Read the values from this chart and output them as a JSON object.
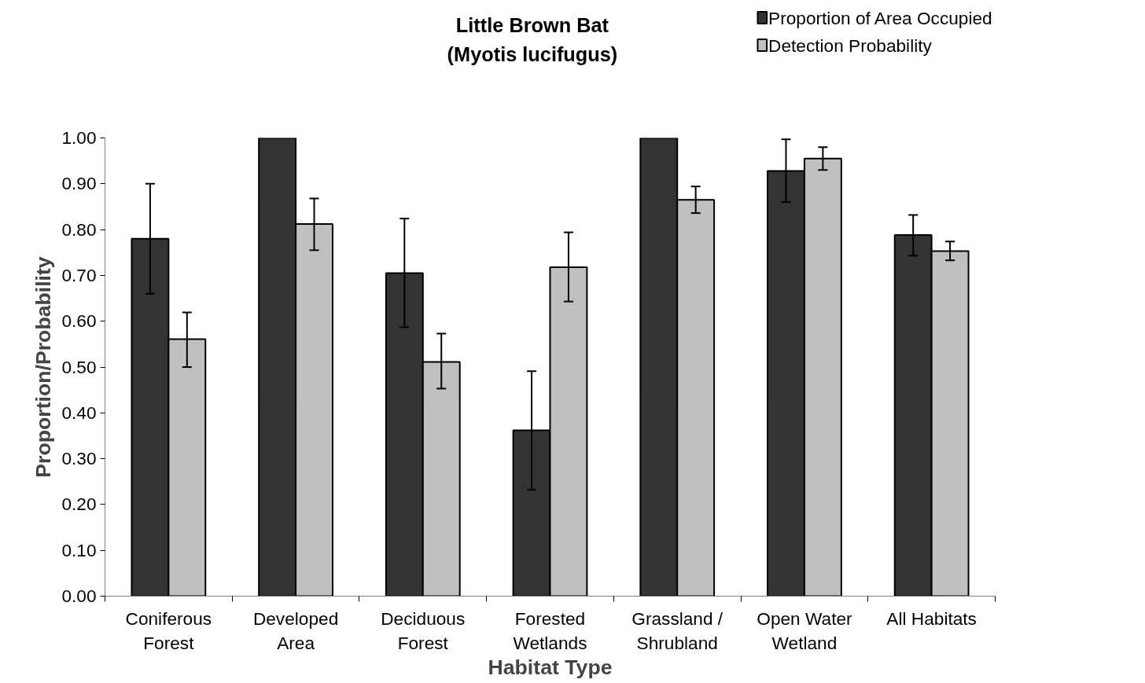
{
  "chart_data": {
    "type": "bar",
    "title": "Little Brown Bat\n(Myotis lucifugus)",
    "xlabel": "Habitat Type",
    "ylabel": "Proportion/Probability",
    "categories": [
      "Coniferous\nForest",
      "Developed\nArea",
      "Deciduous\nForest",
      "Forested\nWetlands",
      "Grassland /\nShrubland",
      "Open Water\nWetland",
      "All Habitats"
    ],
    "series": [
      {
        "name": "Proportion of Area Occupied",
        "color": "#333333",
        "values": [
          0.78,
          1.0,
          0.705,
          0.362,
          1.0,
          0.928,
          0.788
        ],
        "errors": [
          [
            0.66,
            0.9
          ],
          null,
          [
            0.587,
            0.824
          ],
          [
            0.232,
            0.491
          ],
          null,
          [
            0.86,
            0.997
          ],
          [
            0.743,
            0.832
          ]
        ]
      },
      {
        "name": "Detection Probability",
        "color": "#c0c0c0",
        "values": [
          0.561,
          0.812,
          0.511,
          0.718,
          0.865,
          0.955,
          0.753
        ],
        "errors": [
          [
            0.5,
            0.619
          ],
          [
            0.755,
            0.868
          ],
          [
            0.453,
            0.573
          ],
          [
            0.643,
            0.794
          ],
          [
            0.836,
            0.894
          ],
          [
            0.93,
            0.98
          ],
          [
            0.733,
            0.774
          ]
        ]
      }
    ],
    "ylim": [
      0,
      1
    ],
    "yticks": [
      {
        "value": 0,
        "label": "0.00"
      },
      {
        "value": 0.1,
        "label": "0.10"
      },
      {
        "value": 0.2,
        "label": "0.20"
      },
      {
        "value": 0.3,
        "label": "0.30"
      },
      {
        "value": 0.4,
        "label": "0.40"
      },
      {
        "value": 0.5,
        "label": "0.50"
      },
      {
        "value": 0.6,
        "label": "0.60"
      },
      {
        "value": 0.7,
        "label": "0.70"
      },
      {
        "value": 0.8,
        "label": "0.80"
      },
      {
        "value": 0.9,
        "label": "0.90"
      },
      {
        "value": 1,
        "label": "1.00"
      }
    ],
    "grid": false,
    "legend": "top right"
  }
}
